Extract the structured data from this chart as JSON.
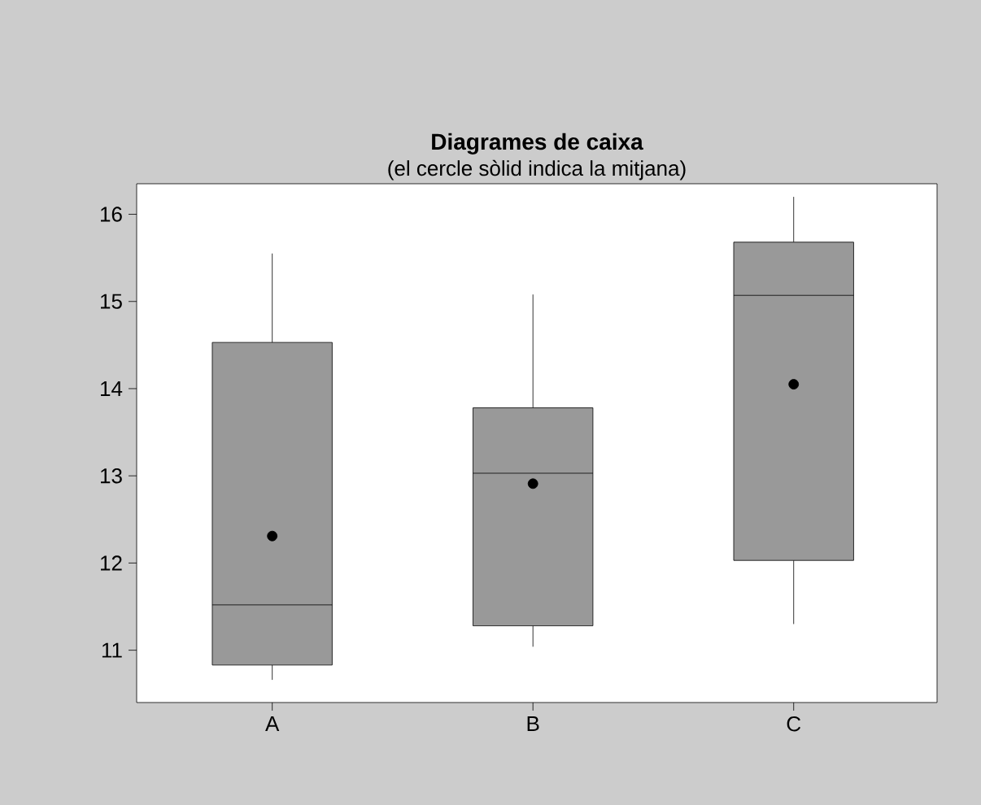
{
  "chart_data": {
    "type": "box",
    "title": "Diagrames de caixa",
    "subtitle": "(el cercle sòlid indica la mitjana)",
    "categories": [
      "A",
      "B",
      "C"
    ],
    "color": "#999999",
    "boxes": [
      {
        "low": 10.66,
        "q1": 10.83,
        "median": 11.52,
        "q3": 14.53,
        "high": 15.55,
        "mean": 12.31
      },
      {
        "low": 11.04,
        "q1": 11.28,
        "median": 13.03,
        "q3": 13.78,
        "high": 15.08,
        "mean": 12.91
      },
      {
        "low": 11.3,
        "q1": 12.03,
        "median": 15.07,
        "q3": 15.68,
        "high": 16.2,
        "mean": 14.05
      }
    ],
    "ylim": [
      10.4,
      16.35
    ],
    "yticks": [
      11,
      12,
      13,
      14,
      15,
      16
    ]
  }
}
